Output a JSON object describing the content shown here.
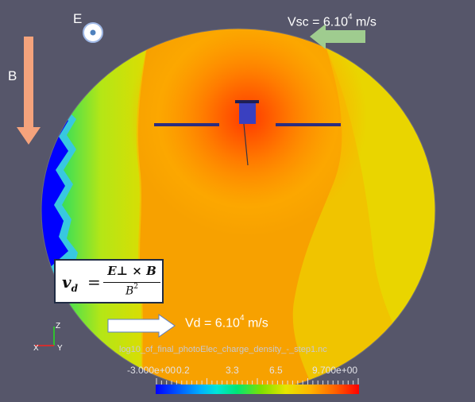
{
  "labels": {
    "e_field": "E",
    "b_field": "B",
    "vsc": "Vsc = 6.10",
    "vsc_exp": "4",
    "vsc_unit": " m/s",
    "vd": "Vd = 6.10",
    "vd_exp": "4",
    "vd_unit": " m/s"
  },
  "formula": {
    "lhs": "v",
    "lhs_sub": "d",
    "eq": "=",
    "numerator": "E⊥ × B",
    "denominator": "B",
    "denominator_exp": "2"
  },
  "colorbar": {
    "title": "log10_of_final_photoElec_charge_density_-_step1.nc",
    "ticks": [
      "-3.000e+00",
      "0.2",
      "3.3",
      "6.5",
      "9.700e+00"
    ]
  },
  "axes_triad": {
    "x": "X",
    "y": "Y",
    "z": "Z"
  },
  "colors": {
    "background": "#56566a",
    "arrow_b": "#f5a37c",
    "arrow_vsc": "#9fcc8f",
    "arrow_vd": "#ffffff",
    "panels": "#2b2d80",
    "field_low": "#0000ff",
    "field_high": "#ff2800"
  }
}
